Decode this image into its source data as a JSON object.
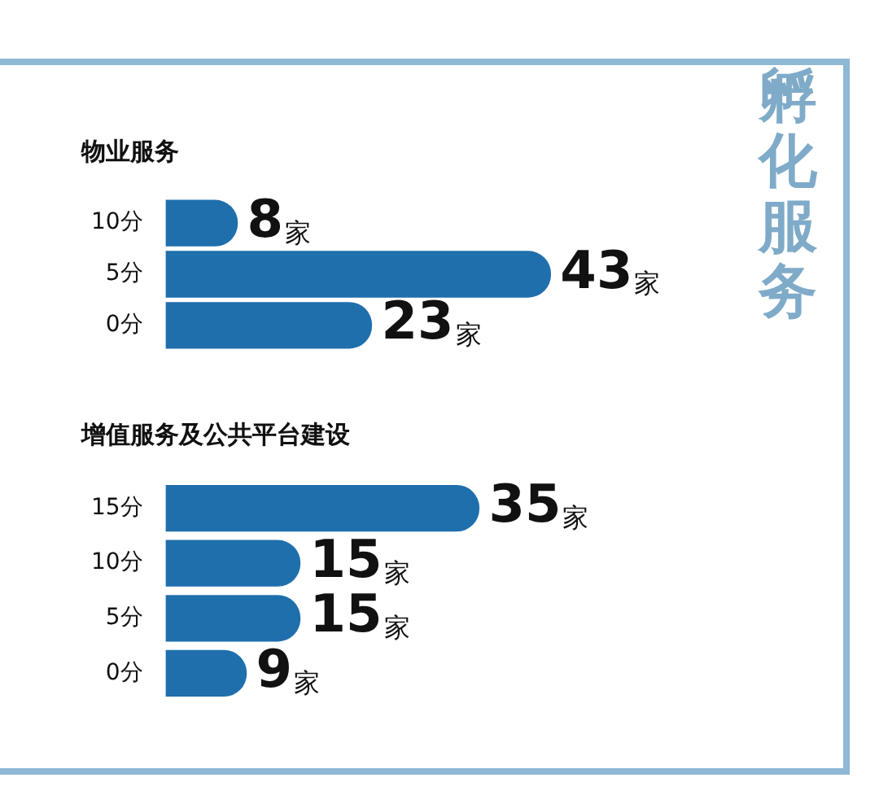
{
  "chart_data": [
    {
      "type": "bar",
      "orientation": "horizontal",
      "title": "物业服务",
      "categories": [
        "10分",
        "5分",
        "0分"
      ],
      "values": [
        8,
        43,
        23
      ],
      "color": "#1f6fad",
      "value_labels": [
        "8家",
        "43家",
        "23家"
      ],
      "tick_labels": "y"
    },
    {
      "type": "bar",
      "orientation": "horizontal",
      "title": "增值服务及公共平台建设",
      "categories": [
        "15分",
        "10分",
        "5分",
        "0分"
      ],
      "values": [
        35,
        15,
        15,
        9
      ],
      "color": "#1f6fad",
      "value_labels": [
        "35家",
        "15家",
        "15家",
        "9家"
      ],
      "tick_labels": "y"
    },
    {
      "type": "other",
      "title": "孵化服务"
    }
  ]
}
